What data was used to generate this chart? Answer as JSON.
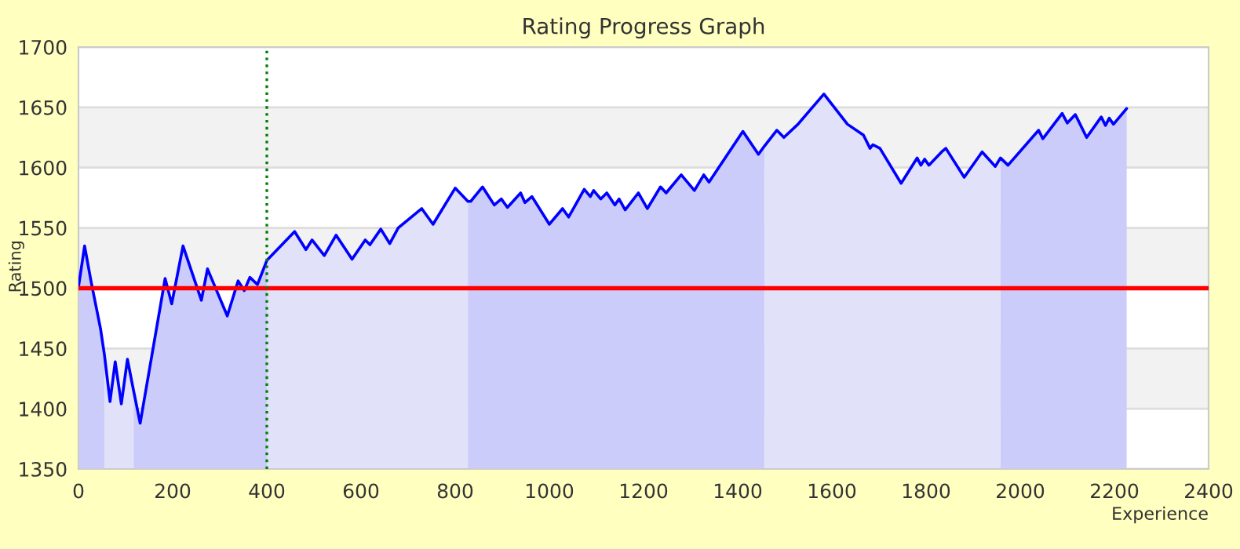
{
  "chart_data": {
    "type": "line",
    "title": "Rating Progress Graph",
    "xlabel": "Experience",
    "ylabel": "Rating",
    "xlim": [
      0,
      2400
    ],
    "xticks": [
      0,
      200,
      400,
      600,
      800,
      1000,
      1200,
      1400,
      1600,
      1800,
      2000,
      2200,
      2400
    ],
    "ylim": [
      1350,
      1700
    ],
    "yticks": [
      1350,
      1400,
      1450,
      1500,
      1550,
      1600,
      1650,
      1700
    ],
    "grid": "y",
    "legend": false,
    "ref_lines": [
      {
        "axis": "y",
        "value": 1500,
        "color": "#ff0000",
        "line_style": "solid"
      },
      {
        "axis": "x",
        "value": 400,
        "color": "#008000",
        "line_style": "dotted"
      }
    ],
    "series": [
      {
        "type": "area",
        "color": "#ccccfb",
        "x": [
          0,
          13,
          27,
          47,
          55
        ],
        "values": [
          1501,
          1535,
          1505,
          1466,
          1445
        ]
      },
      {
        "type": "area",
        "color": "#e1e1fa",
        "x": [
          55,
          67,
          78,
          91,
          104,
          117
        ],
        "values": [
          1445,
          1406,
          1439,
          1404,
          1441,
          1415
        ]
      },
      {
        "type": "area",
        "color": "#ccccfb",
        "x": [
          117,
          131,
          184,
          198,
          222,
          261,
          274,
          316,
          339,
          352,
          364,
          380,
          400
        ],
        "values": [
          1415,
          1388,
          1508,
          1487,
          1535,
          1490,
          1516,
          1477,
          1506,
          1498,
          1509,
          1503,
          1523
        ]
      },
      {
        "type": "area",
        "color": "#e1e1fa",
        "x": [
          400,
          459,
          483,
          496,
          522,
          547,
          581,
          609,
          619,
          642,
          661,
          679,
          729,
          753,
          800,
          827
        ],
        "values": [
          1523,
          1547,
          1532,
          1540,
          1527,
          1544,
          1524,
          1540,
          1536,
          1549,
          1537,
          1550,
          1566,
          1553,
          1583,
          1572
        ]
      },
      {
        "type": "area",
        "color": "#ccccfb",
        "x": [
          827,
          833,
          858,
          883,
          898,
          911,
          939,
          948,
          963,
          1000,
          1028,
          1041,
          1074,
          1087,
          1094,
          1109,
          1122,
          1139,
          1148,
          1161,
          1189,
          1208,
          1236,
          1248,
          1280,
          1308,
          1328,
          1339,
          1411,
          1444,
          1457
        ],
        "values": [
          1572,
          1572,
          1584,
          1569,
          1574,
          1567,
          1579,
          1571,
          1576,
          1553,
          1566,
          1559,
          1582,
          1576,
          1581,
          1574,
          1579,
          1569,
          1574,
          1565,
          1579,
          1566,
          1584,
          1579,
          1594,
          1581,
          1594,
          1588,
          1630,
          1611,
          1618
        ]
      },
      {
        "type": "area",
        "color": "#e1e1fa",
        "x": [
          1457,
          1483,
          1498,
          1528,
          1583,
          1633,
          1667,
          1681,
          1687,
          1702,
          1747,
          1781,
          1789,
          1797,
          1806,
          1833,
          1842,
          1881,
          1919,
          1947,
          1958
        ],
        "values": [
          1618,
          1631,
          1625,
          1636,
          1661,
          1636,
          1627,
          1616,
          1619,
          1616,
          1587,
          1608,
          1602,
          1607,
          1602,
          1613,
          1616,
          1592,
          1613,
          1601,
          1608
        ]
      },
      {
        "type": "area",
        "color": "#ccccfb",
        "x": [
          1958,
          1974,
          2039,
          2048,
          2089,
          2100,
          2117,
          2141,
          2172,
          2181,
          2189,
          2198,
          2226
        ],
        "values": [
          1608,
          1602,
          1631,
          1624,
          1645,
          1637,
          1644,
          1625,
          1642,
          1635,
          1641,
          1636,
          1649
        ]
      },
      {
        "color": "#0000ff",
        "x": [
          0,
          13,
          27,
          47,
          55,
          67,
          78,
          91,
          104,
          117,
          131,
          184,
          198,
          222,
          261,
          274,
          316,
          339,
          352,
          364,
          380,
          400,
          459,
          483,
          496,
          522,
          547,
          581,
          609,
          619,
          642,
          661,
          679,
          729,
          753,
          800,
          827,
          833,
          858,
          883,
          898,
          911,
          939,
          948,
          963,
          1000,
          1028,
          1041,
          1074,
          1087,
          1094,
          1109,
          1122,
          1139,
          1148,
          1161,
          1189,
          1208,
          1236,
          1248,
          1280,
          1308,
          1328,
          1339,
          1411,
          1444,
          1457,
          1483,
          1498,
          1528,
          1583,
          1633,
          1667,
          1681,
          1687,
          1702,
          1747,
          1781,
          1789,
          1797,
          1806,
          1833,
          1842,
          1881,
          1919,
          1947,
          1958,
          1974,
          2039,
          2048,
          2089,
          2100,
          2117,
          2141,
          2172,
          2181,
          2189,
          2198,
          2226
        ],
        "values": [
          1501,
          1535,
          1505,
          1466,
          1445,
          1406,
          1439,
          1404,
          1441,
          1415,
          1388,
          1508,
          1487,
          1535,
          1490,
          1516,
          1477,
          1506,
          1498,
          1509,
          1503,
          1523,
          1547,
          1532,
          1540,
          1527,
          1544,
          1524,
          1540,
          1536,
          1549,
          1537,
          1550,
          1566,
          1553,
          1583,
          1572,
          1572,
          1584,
          1569,
          1574,
          1567,
          1579,
          1571,
          1576,
          1553,
          1566,
          1559,
          1582,
          1576,
          1581,
          1574,
          1579,
          1569,
          1574,
          1565,
          1579,
          1566,
          1584,
          1579,
          1594,
          1581,
          1594,
          1588,
          1630,
          1611,
          1618,
          1631,
          1625,
          1636,
          1661,
          1636,
          1627,
          1616,
          1619,
          1616,
          1587,
          1608,
          1602,
          1607,
          1602,
          1613,
          1616,
          1592,
          1613,
          1601,
          1608,
          1602,
          1631,
          1624,
          1645,
          1637,
          1644,
          1625,
          1642,
          1635,
          1641,
          1636,
          1649
        ]
      }
    ]
  }
}
